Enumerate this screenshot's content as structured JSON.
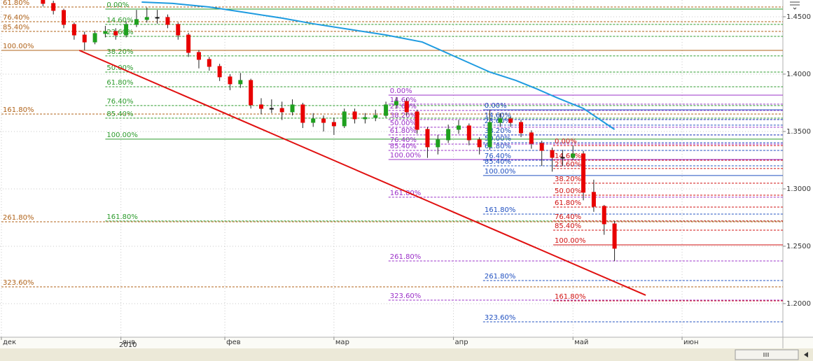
{
  "chart_data": {
    "type": "candlestick",
    "xlim": [
      -0.27,
      150.4
    ],
    "ylim": [
      1.1707,
      1.4646
    ],
    "grid": true,
    "x_sublabel": "2010",
    "xticks": [
      {
        "value": 0,
        "label": "дек"
      },
      {
        "value": 23,
        "label": "янв"
      },
      {
        "value": 43,
        "label": "фев"
      },
      {
        "value": 64,
        "label": "мар"
      },
      {
        "value": 87,
        "label": "апр"
      },
      {
        "value": 110,
        "label": "май"
      },
      {
        "value": 131,
        "label": "июн"
      }
    ],
    "yticks": [
      {
        "value": 1.2,
        "label": "1.2000"
      },
      {
        "value": 1.25,
        "label": "1.2500"
      },
      {
        "value": 1.3,
        "label": "1.3000"
      },
      {
        "value": 1.35,
        "label": "1.3500"
      },
      {
        "value": 1.4,
        "label": "1.4000"
      },
      {
        "value": 1.45,
        "label": "1.4500"
      }
    ],
    "candles": {
      "up_color": "#1fa01f",
      "down_color": "#e80000",
      "flat_color": "#111111",
      "x": [
        8,
        10,
        12,
        14,
        16,
        18,
        20,
        22,
        24,
        26,
        28,
        30,
        32,
        34,
        36,
        38,
        40,
        42,
        44,
        46,
        48,
        50,
        52,
        54,
        56,
        58,
        60,
        62,
        64,
        66,
        68,
        70,
        72,
        74,
        76,
        78,
        80,
        82,
        84,
        86,
        88,
        90,
        92,
        94,
        96,
        98,
        100,
        102,
        104,
        106,
        108,
        110,
        112,
        114,
        116,
        118
      ],
      "open": [
        1.466,
        1.4616,
        1.4555,
        1.4433,
        1.4341,
        1.428,
        1.4354,
        1.4372,
        1.4341,
        1.4433,
        1.4476,
        1.4494,
        1.4494,
        1.4433,
        1.4341,
        1.4189,
        1.4128,
        1.4067,
        1.3976,
        1.3915,
        1.3945,
        1.3732,
        1.3701,
        1.3701,
        1.3671,
        1.3732,
        1.3579,
        1.361,
        1.3579,
        1.3549,
        1.3671,
        1.361,
        1.3622,
        1.364,
        1.3732,
        1.3762,
        1.3671,
        1.3518,
        1.3366,
        1.3427,
        1.3518,
        1.3549,
        1.3427,
        1.3366,
        1.3579,
        1.361,
        1.3579,
        1.3488,
        1.3396,
        1.3335,
        1.3274,
        1.3274,
        1.3305,
        1.297,
        1.2848,
        1.2695
      ],
      "high": [
        1.469,
        1.464,
        1.457,
        1.445,
        1.437,
        1.438,
        1.442,
        1.44,
        1.446,
        1.456,
        1.458,
        1.456,
        1.452,
        1.445,
        1.436,
        1.421,
        1.415,
        1.409,
        1.4,
        1.401,
        1.396,
        1.379,
        1.378,
        1.376,
        1.378,
        1.375,
        1.366,
        1.364,
        1.362,
        1.37,
        1.37,
        1.366,
        1.369,
        1.376,
        1.38,
        1.379,
        1.369,
        1.354,
        1.347,
        1.356,
        1.36,
        1.357,
        1.345,
        1.369,
        1.366,
        1.363,
        1.36,
        1.351,
        1.342,
        1.336,
        1.334,
        1.338,
        1.333,
        1.308,
        1.286,
        1.272
      ],
      "low": [
        1.459,
        1.452,
        1.44,
        1.43,
        1.421,
        1.426,
        1.432,
        1.43,
        1.432,
        1.441,
        1.445,
        1.444,
        1.44,
        1.43,
        1.415,
        1.405,
        1.403,
        1.394,
        1.386,
        1.388,
        1.37,
        1.365,
        1.366,
        1.36,
        1.364,
        1.353,
        1.354,
        1.35,
        1.347,
        1.353,
        1.357,
        1.357,
        1.359,
        1.362,
        1.37,
        1.364,
        1.348,
        1.327,
        1.33,
        1.34,
        1.348,
        1.338,
        1.33,
        1.334,
        1.354,
        1.354,
        1.345,
        1.335,
        1.32,
        1.315,
        1.32,
        1.325,
        1.29,
        1.28,
        1.26,
        1.237
      ],
      "close": [
        1.4616,
        1.4555,
        1.4433,
        1.4341,
        1.428,
        1.4354,
        1.4372,
        1.4341,
        1.4433,
        1.4476,
        1.4494,
        1.4494,
        1.4433,
        1.4341,
        1.4189,
        1.4128,
        1.4067,
        1.3976,
        1.3915,
        1.3945,
        1.3732,
        1.3701,
        1.3701,
        1.3671,
        1.3732,
        1.3579,
        1.361,
        1.3579,
        1.3549,
        1.3671,
        1.361,
        1.3622,
        1.364,
        1.3732,
        1.3762,
        1.3671,
        1.3518,
        1.3366,
        1.3427,
        1.3518,
        1.3549,
        1.3427,
        1.3366,
        1.3579,
        1.361,
        1.3579,
        1.3488,
        1.3396,
        1.3335,
        1.3274,
        1.3274,
        1.3305,
        1.297,
        1.2848,
        1.2695,
        1.2482
      ]
    },
    "moving_average": {
      "color": "#1e9be0",
      "x": [
        27,
        33,
        40,
        47,
        54,
        60,
        67,
        74,
        81,
        87,
        94,
        99,
        103,
        107,
        112,
        116,
        118
      ],
      "values": [
        1.4628,
        1.4616,
        1.4585,
        1.4537,
        1.4488,
        1.4439,
        1.439,
        1.4341,
        1.428,
        1.4159,
        1.4018,
        1.3945,
        1.3872,
        1.3793,
        1.3701,
        1.3579,
        1.3518
      ]
    },
    "trend_line": {
      "color": "#e01010",
      "x": [
        15,
        124
      ],
      "values": [
        1.4207,
        1.2073
      ]
    },
    "fibonacci": [
      {
        "color": "#b0631a",
        "start": 0,
        "levels": [
          {
            "value": 1.4585,
            "label": "61.80%"
          },
          {
            "value": 1.4457,
            "label": "76.40%"
          },
          {
            "value": 1.4372,
            "label": "85.40%"
          },
          {
            "value": 1.4207,
            "label": "100.00%",
            "style": "solid"
          },
          {
            "value": 1.3652,
            "label": "161.80%"
          },
          {
            "value": 1.2713,
            "label": "261.80%"
          },
          {
            "value": 1.2146,
            "label": "323.60%"
          }
        ]
      },
      {
        "color": "#2a9a2a",
        "start": 20,
        "levels": [
          {
            "value": 1.4567,
            "label": "0.00%",
            "style": "solid"
          },
          {
            "value": 1.4433,
            "label": "14.60%"
          },
          {
            "value": 1.4329,
            "label": "23.60%"
          },
          {
            "value": 1.4159,
            "label": "38.20%"
          },
          {
            "value": 1.4018,
            "label": "50.00%"
          },
          {
            "value": 1.389,
            "label": "61.80%"
          },
          {
            "value": 1.3726,
            "label": "76.40%"
          },
          {
            "value": 1.3616,
            "label": "85.40%"
          },
          {
            "value": 1.3433,
            "label": "100.00%",
            "style": "solid"
          },
          {
            "value": 1.272,
            "label": "161.80%"
          }
        ]
      },
      {
        "color": "#9b30c8",
        "start": 74.5,
        "levels": [
          {
            "value": 1.3817,
            "label": "0.00%",
            "style": "solid"
          },
          {
            "value": 1.3738,
            "label": "14.60%"
          },
          {
            "value": 1.3683,
            "label": "23.60%"
          },
          {
            "value": 1.3604,
            "label": "38.20%"
          },
          {
            "value": 1.3537,
            "label": "50.00%"
          },
          {
            "value": 1.347,
            "label": "61.80%"
          },
          {
            "value": 1.339,
            "label": "76.40%"
          },
          {
            "value": 1.3335,
            "label": "85.40%"
          },
          {
            "value": 1.3256,
            "label": "100.00%",
            "style": "solid"
          },
          {
            "value": 1.2927,
            "label": "161.80%"
          },
          {
            "value": 1.2372,
            "label": "261.80%"
          },
          {
            "value": 1.203,
            "label": "323.60%"
          }
        ]
      },
      {
        "color": "#2050c0",
        "start": 92.7,
        "levels": [
          {
            "value": 1.3689,
            "label": "0.00%",
            "style": "solid"
          },
          {
            "value": 1.3604,
            "label": "14.60%"
          },
          {
            "value": 1.3555,
            "label": "23.60%"
          },
          {
            "value": 1.347,
            "label": "38.20%"
          },
          {
            "value": 1.3402,
            "label": "50.00%"
          },
          {
            "value": 1.3335,
            "label": "61.80%"
          },
          {
            "value": 1.325,
            "label": "76.40%"
          },
          {
            "value": 1.3201,
            "label": "85.40%"
          },
          {
            "value": 1.3116,
            "label": "100.00%",
            "style": "solid"
          },
          {
            "value": 1.278,
            "label": "161.80%"
          },
          {
            "value": 1.2201,
            "label": "261.80%"
          },
          {
            "value": 1.1841,
            "label": "323.60%"
          }
        ]
      },
      {
        "color": "#d01010",
        "start": 106.2,
        "levels": [
          {
            "value": 1.3378,
            "label": "0.00%"
          },
          {
            "value": 1.325,
            "label": "14.60%"
          },
          {
            "value": 1.3177,
            "label": "23.60%"
          },
          {
            "value": 1.3049,
            "label": "38.20%"
          },
          {
            "value": 1.2945,
            "label": "50.00%"
          },
          {
            "value": 1.2841,
            "label": "61.80%"
          },
          {
            "value": 1.272,
            "label": "76.40%"
          },
          {
            "value": 1.264,
            "label": "85.40%"
          },
          {
            "value": 1.2512,
            "label": "100.00%",
            "style": "solid"
          },
          {
            "value": 1.2024,
            "label": "161.80%"
          }
        ]
      }
    ]
  }
}
